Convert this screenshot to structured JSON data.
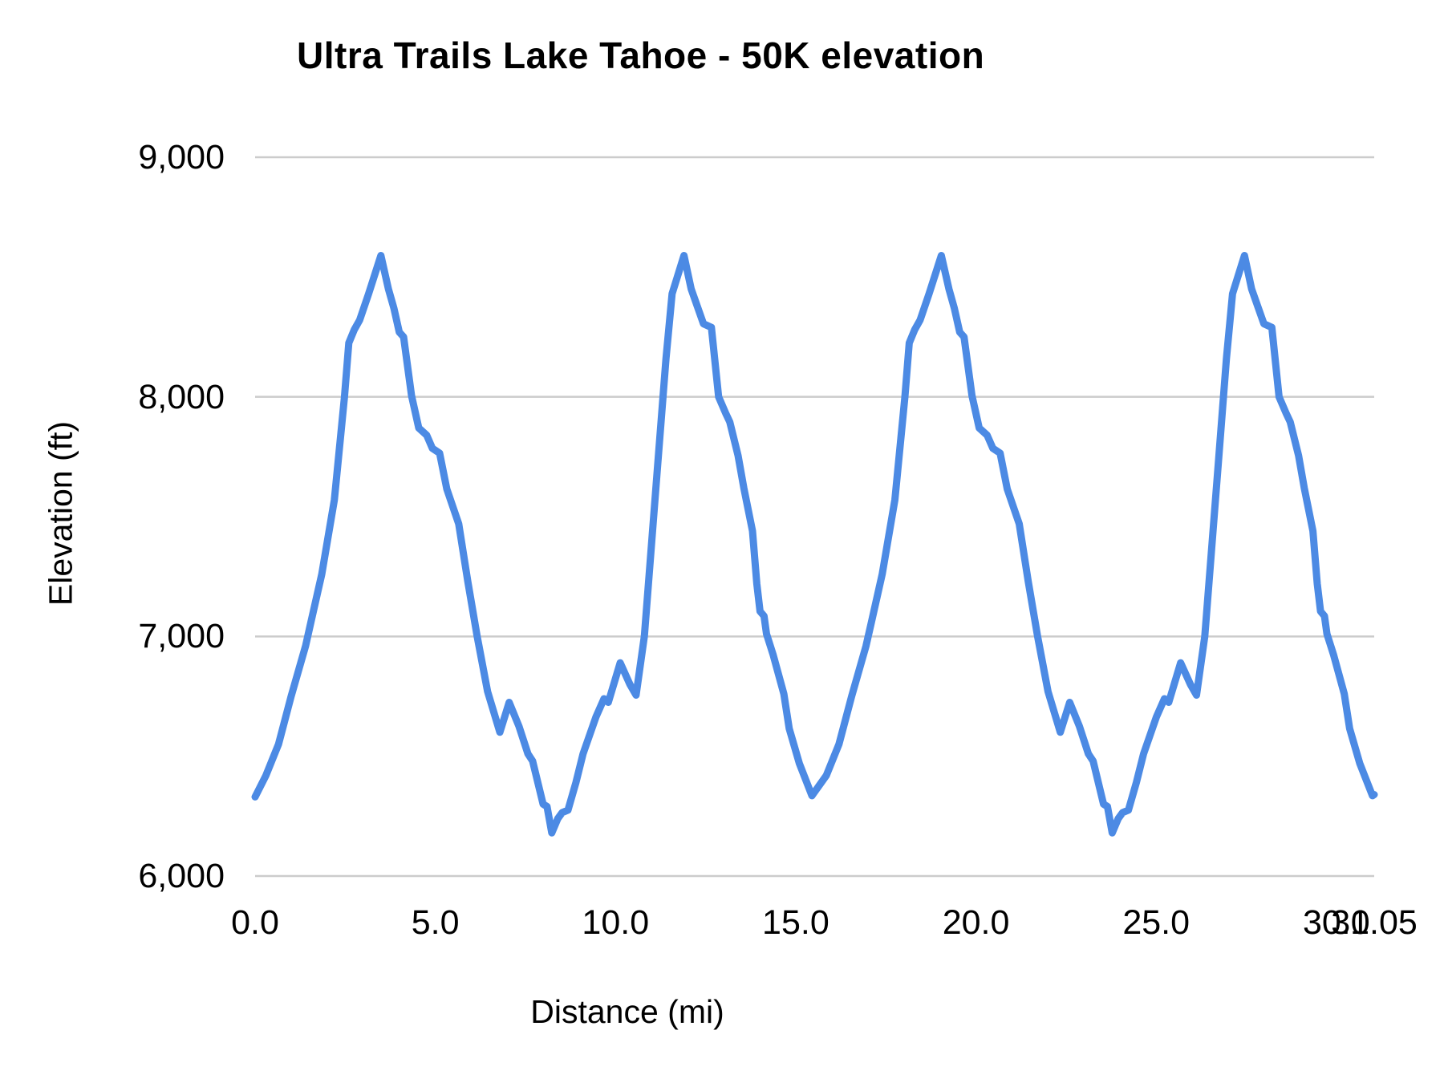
{
  "chart_data": {
    "type": "line",
    "title": "Ultra Trails Lake Tahoe - 50K elevation",
    "xlabel": "Distance (mi)",
    "ylabel": "Elevation (ft)",
    "xlim": [
      0,
      31.05
    ],
    "ylim": [
      6000,
      9000
    ],
    "grid": "horizontal",
    "legend": "none",
    "gridline_color": "#cccccc",
    "line_color": "#4c8ae4",
    "line_width": 9,
    "x_ticks": [
      {
        "v": 0,
        "label": "0.0"
      },
      {
        "v": 5,
        "label": "5.0"
      },
      {
        "v": 10,
        "label": "10.0"
      },
      {
        "v": 15,
        "label": "15.0"
      },
      {
        "v": 20,
        "label": "20.0"
      },
      {
        "v": 25,
        "label": "25.0"
      },
      {
        "v": 30,
        "label": "30.0"
      },
      {
        "v": 31.05,
        "label": "31.05"
      }
    ],
    "y_ticks": [
      {
        "v": 9000,
        "label": "9,000"
      },
      {
        "v": 8000,
        "label": "8,000"
      },
      {
        "v": 7000,
        "label": "7,000"
      },
      {
        "v": 6000,
        "label": "6,000"
      }
    ],
    "series": [
      {
        "name": "elevation",
        "points": [
          [
            0.0,
            6330
          ],
          [
            0.3,
            6420
          ],
          [
            0.65,
            6550
          ],
          [
            1.0,
            6750
          ],
          [
            1.4,
            6960
          ],
          [
            1.55,
            7060
          ],
          [
            1.85,
            7260
          ],
          [
            2.2,
            7570
          ],
          [
            2.48,
            8000
          ],
          [
            2.6,
            8225
          ],
          [
            2.75,
            8280
          ],
          [
            2.9,
            8320
          ],
          [
            3.15,
            8430
          ],
          [
            3.49,
            8590
          ],
          [
            3.7,
            8450
          ],
          [
            3.85,
            8370
          ],
          [
            4.0,
            8270
          ],
          [
            4.12,
            8250
          ],
          [
            4.34,
            8005
          ],
          [
            4.54,
            7870
          ],
          [
            4.76,
            7840
          ],
          [
            4.92,
            7785
          ],
          [
            5.12,
            7765
          ],
          [
            5.32,
            7615
          ],
          [
            5.65,
            7470
          ],
          [
            5.9,
            7230
          ],
          [
            6.16,
            7000
          ],
          [
            6.45,
            6770
          ],
          [
            6.79,
            6600
          ],
          [
            7.05,
            6725
          ],
          [
            7.32,
            6625
          ],
          [
            7.57,
            6510
          ],
          [
            7.7,
            6480
          ],
          [
            7.99,
            6300
          ],
          [
            8.1,
            6290
          ],
          [
            8.23,
            6180
          ],
          [
            8.4,
            6240
          ],
          [
            8.52,
            6265
          ],
          [
            8.68,
            6275
          ],
          [
            8.9,
            6390
          ],
          [
            9.1,
            6510
          ],
          [
            9.46,
            6665
          ],
          [
            9.68,
            6740
          ],
          [
            9.8,
            6725
          ],
          [
            10.13,
            6890
          ],
          [
            10.4,
            6800
          ],
          [
            10.57,
            6755
          ],
          [
            10.8,
            7000
          ],
          [
            11.17,
            7715
          ],
          [
            11.4,
            8160
          ],
          [
            11.57,
            8430
          ],
          [
            11.9,
            8590
          ],
          [
            12.1,
            8450
          ],
          [
            12.44,
            8305
          ],
          [
            12.66,
            8290
          ],
          [
            12.86,
            8000
          ],
          [
            13.06,
            7930
          ],
          [
            13.17,
            7895
          ],
          [
            13.4,
            7755
          ],
          [
            13.56,
            7620
          ],
          [
            13.8,
            7440
          ],
          [
            13.92,
            7220
          ],
          [
            14.01,
            7105
          ],
          [
            14.12,
            7085
          ],
          [
            14.19,
            7010
          ],
          [
            14.37,
            6925
          ],
          [
            14.67,
            6760
          ],
          [
            14.82,
            6615
          ],
          [
            15.1,
            6470
          ],
          [
            15.45,
            6335
          ],
          [
            15.85,
            6420
          ],
          [
            16.2,
            6550
          ],
          [
            16.55,
            6750
          ],
          [
            16.95,
            6960
          ],
          [
            17.1,
            7060
          ],
          [
            17.4,
            7260
          ],
          [
            17.75,
            7570
          ],
          [
            18.03,
            8000
          ],
          [
            18.15,
            8225
          ],
          [
            18.3,
            8280
          ],
          [
            18.45,
            8320
          ],
          [
            18.7,
            8430
          ],
          [
            19.04,
            8590
          ],
          [
            19.25,
            8450
          ],
          [
            19.4,
            8370
          ],
          [
            19.55,
            8270
          ],
          [
            19.67,
            8250
          ],
          [
            19.89,
            8005
          ],
          [
            20.09,
            7870
          ],
          [
            20.31,
            7840
          ],
          [
            20.47,
            7785
          ],
          [
            20.67,
            7765
          ],
          [
            20.87,
            7615
          ],
          [
            21.2,
            7470
          ],
          [
            21.45,
            7230
          ],
          [
            21.71,
            7000
          ],
          [
            22.0,
            6770
          ],
          [
            22.34,
            6600
          ],
          [
            22.6,
            6725
          ],
          [
            22.87,
            6625
          ],
          [
            23.12,
            6510
          ],
          [
            23.25,
            6480
          ],
          [
            23.54,
            6300
          ],
          [
            23.65,
            6290
          ],
          [
            23.78,
            6180
          ],
          [
            23.95,
            6240
          ],
          [
            24.07,
            6265
          ],
          [
            24.23,
            6275
          ],
          [
            24.45,
            6390
          ],
          [
            24.65,
            6510
          ],
          [
            25.01,
            6665
          ],
          [
            25.23,
            6740
          ],
          [
            25.35,
            6725
          ],
          [
            25.68,
            6890
          ],
          [
            25.95,
            6800
          ],
          [
            26.12,
            6755
          ],
          [
            26.35,
            7000
          ],
          [
            26.72,
            7715
          ],
          [
            26.95,
            8160
          ],
          [
            27.12,
            8430
          ],
          [
            27.45,
            8590
          ],
          [
            27.65,
            8450
          ],
          [
            27.99,
            8305
          ],
          [
            28.21,
            8290
          ],
          [
            28.41,
            8000
          ],
          [
            28.61,
            7930
          ],
          [
            28.72,
            7895
          ],
          [
            28.95,
            7755
          ],
          [
            29.11,
            7620
          ],
          [
            29.35,
            7440
          ],
          [
            29.47,
            7220
          ],
          [
            29.56,
            7105
          ],
          [
            29.67,
            7085
          ],
          [
            29.74,
            7010
          ],
          [
            29.92,
            6925
          ],
          [
            30.22,
            6760
          ],
          [
            30.37,
            6615
          ],
          [
            30.65,
            6470
          ],
          [
            31.0,
            6335
          ],
          [
            31.05,
            6340
          ]
        ]
      }
    ]
  }
}
